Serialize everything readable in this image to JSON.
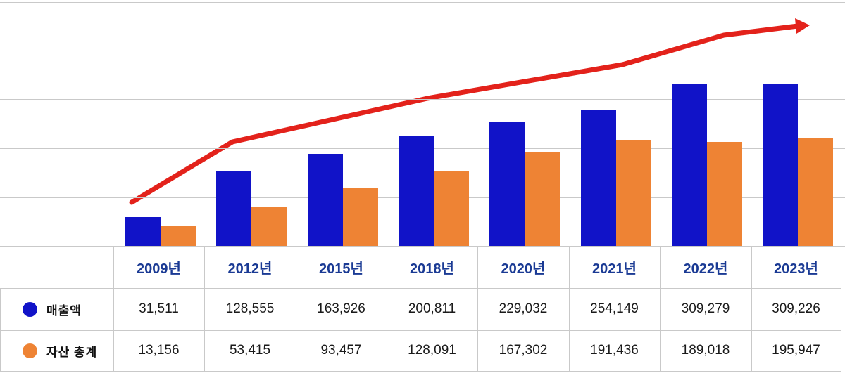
{
  "chart_data": {
    "type": "bar",
    "title": "",
    "categories": [
      "2009년",
      "2012년",
      "2015년",
      "2018년",
      "2020년",
      "2021년",
      "2022년",
      "2023년"
    ],
    "series": [
      {
        "name": "매출액",
        "color": "#1113C8",
        "values": [
          31511,
          128555,
          163926,
          200811,
          229032,
          254149,
          309279,
          309226
        ]
      },
      {
        "name": "자산 총계",
        "color": "#EE8334",
        "values": [
          13156,
          53415,
          93457,
          128091,
          167302,
          191436,
          189018,
          195947
        ]
      }
    ],
    "value_format": "thousands-comma",
    "grid": true,
    "gridlines_horizontal_count": 6,
    "legend_position": "left-table-rows",
    "annotations": [
      {
        "type": "trend-arrow",
        "color": "#E3221B",
        "description": "red upward trend arrow rising left-to-right above the bars"
      }
    ]
  },
  "colors": {
    "bar_revenue": "#1113C8",
    "bar_assets": "#EE8334",
    "trend_red": "#E3221B",
    "year_header_text": "#1A3A94",
    "value_text": "#1A1A1A",
    "grid_line": "#C9C9C9"
  }
}
